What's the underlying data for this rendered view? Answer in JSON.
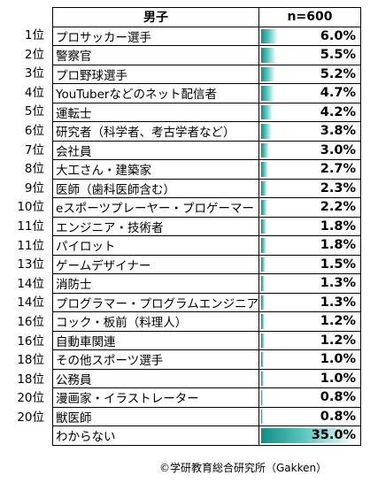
{
  "header": {
    "category": "男子",
    "sample": "n=600"
  },
  "credit": "©学研教育総合研究所（Gakken）",
  "chart_data": {
    "type": "table",
    "columns": [
      "男子",
      "n=600"
    ],
    "rows": [
      {
        "rank": "1位",
        "job": "プロサッカー選手",
        "value": 6.0,
        "label": "6.0%"
      },
      {
        "rank": "2位",
        "job": "警察官",
        "value": 5.5,
        "label": "5.5%"
      },
      {
        "rank": "3位",
        "job": "プロ野球選手",
        "value": 5.2,
        "label": "5.2%"
      },
      {
        "rank": "4位",
        "job": "YouTuberなどのネット配信者",
        "value": 4.7,
        "label": "4.7%"
      },
      {
        "rank": "5位",
        "job": "運転士",
        "value": 4.2,
        "label": "4.2%"
      },
      {
        "rank": "6位",
        "job": "研究者（科学者、考古学者など）",
        "value": 3.8,
        "label": "3.8%"
      },
      {
        "rank": "7位",
        "job": "会社員",
        "value": 3.0,
        "label": "3.0%"
      },
      {
        "rank": "8位",
        "job": "大工さん・建築家",
        "value": 2.7,
        "label": "2.7%"
      },
      {
        "rank": "9位",
        "job": "医師（歯科医師含む）",
        "value": 2.3,
        "label": "2.3%"
      },
      {
        "rank": "10位",
        "job": "eスポーツプレーヤー・プロゲーマー",
        "value": 2.2,
        "label": "2.2%"
      },
      {
        "rank": "11位",
        "job": "エンジニア・技術者",
        "value": 1.8,
        "label": "1.8%"
      },
      {
        "rank": "11位",
        "job": "パイロット",
        "value": 1.8,
        "label": "1.8%"
      },
      {
        "rank": "13位",
        "job": "ゲームデザイナー",
        "value": 1.5,
        "label": "1.5%"
      },
      {
        "rank": "14位",
        "job": "消防士",
        "value": 1.3,
        "label": "1.3%"
      },
      {
        "rank": "14位",
        "job": "プログラマー・プログラムエンジニア",
        "value": 1.3,
        "label": "1.3%"
      },
      {
        "rank": "16位",
        "job": "コック・板前（料理人）",
        "value": 1.2,
        "label": "1.2%"
      },
      {
        "rank": "16位",
        "job": "自動車関連",
        "value": 1.2,
        "label": "1.2%"
      },
      {
        "rank": "18位",
        "job": "その他スポーツ選手",
        "value": 1.0,
        "label": "1.0%"
      },
      {
        "rank": "18位",
        "job": "公務員",
        "value": 1.0,
        "label": "1.0%"
      },
      {
        "rank": "20位",
        "job": "漫画家・イラストレーター",
        "value": 0.8,
        "label": "0.8%"
      },
      {
        "rank": "20位",
        "job": "獣医師",
        "value": 0.8,
        "label": "0.8%"
      },
      {
        "rank": "",
        "job": "わからない",
        "value": 35.0,
        "label": "35.0%"
      }
    ],
    "bar_colors": [
      "#0f8f86",
      "#5cc6bf",
      "#ffffff"
    ],
    "value_max": 35.0
  }
}
